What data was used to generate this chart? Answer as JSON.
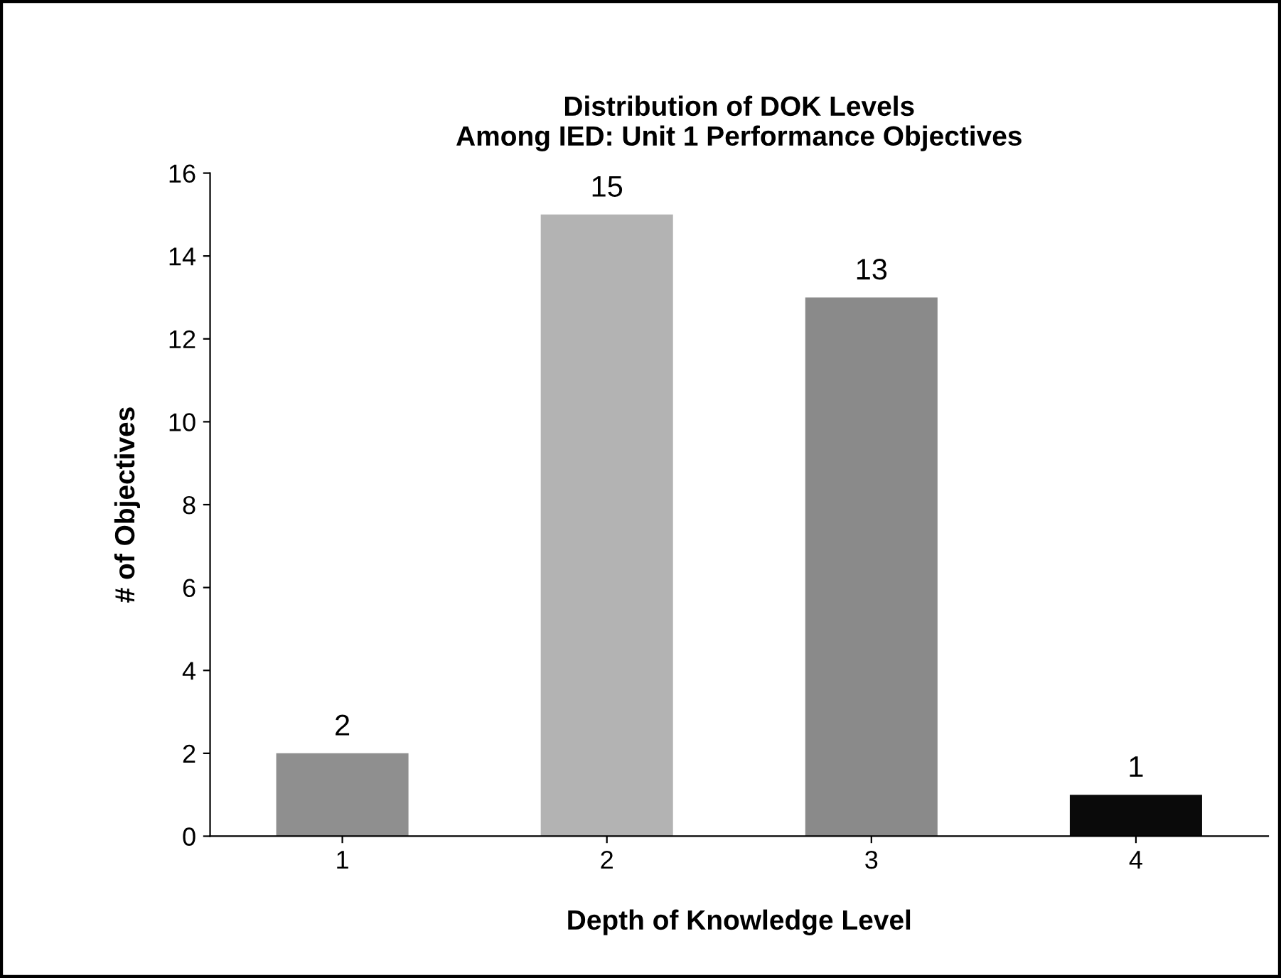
{
  "chart_data": {
    "type": "bar",
    "title": "Distribution of DOK Levels\nAmong IED: Unit 1 Performance Objectives",
    "xlabel": "Depth of Knowledge Level",
    "ylabel": "# of Objectives",
    "categories": [
      "1",
      "2",
      "3",
      "4"
    ],
    "values": [
      2,
      15,
      13,
      1
    ],
    "colors": [
      "#8f8f8f",
      "#b3b3b3",
      "#8a8a8a",
      "#0a0a0a"
    ],
    "ylim": [
      0,
      16
    ],
    "yticks": [
      0,
      2,
      4,
      6,
      8,
      10,
      12,
      14,
      16
    ],
    "grid": false,
    "data_labels": true
  }
}
